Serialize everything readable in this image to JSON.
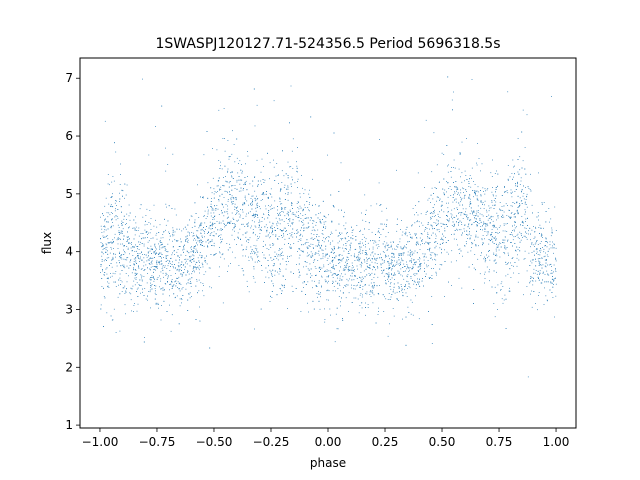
{
  "chart_data": {
    "type": "scatter",
    "title": "1SWASPJ120127.71-524356.5 Period 5696318.5s",
    "xlabel": "phase",
    "ylabel": "flux",
    "xlim": [
      -1.0875,
      1.0875
    ],
    "ylim": [
      0.95,
      7.35
    ],
    "x_ticks": [
      -1.0,
      -0.75,
      -0.5,
      -0.25,
      0.0,
      0.25,
      0.5,
      0.75,
      1.0
    ],
    "x_tick_labels": [
      "−1.00",
      "−0.75",
      "−0.50",
      "−0.25",
      "0.00",
      "0.25",
      "0.50",
      "0.75",
      "1.00"
    ],
    "y_ticks": [
      1,
      2,
      3,
      4,
      5,
      6,
      7
    ],
    "y_tick_labels": [
      "1",
      "2",
      "3",
      "4",
      "5",
      "6",
      "7"
    ],
    "grid": false,
    "legend": "none",
    "marker_color": "#1f77b4",
    "series": [
      {
        "phase_x": [
          -1.0,
          -0.95,
          -0.9,
          -0.85,
          -0.8,
          -0.75,
          -0.7,
          -0.65,
          -0.6,
          -0.55,
          -0.5,
          -0.45,
          -0.4,
          -0.35,
          -0.3,
          -0.25,
          -0.2,
          -0.15,
          -0.1,
          -0.05,
          0.0,
          0.05,
          0.1,
          0.15,
          0.2,
          0.25,
          0.3,
          0.35,
          0.4,
          0.45,
          0.5,
          0.55,
          0.6,
          0.65,
          0.7,
          0.75,
          0.8,
          0.85,
          0.9,
          0.95,
          1.0
        ],
        "typical_flux": [
          3.9,
          4.2,
          4.1,
          3.8,
          3.85,
          3.9,
          3.85,
          3.8,
          3.9,
          4.2,
          4.5,
          4.8,
          4.7,
          4.6,
          4.5,
          4.3,
          4.4,
          4.6,
          4.2,
          4.0,
          3.9,
          3.8,
          3.7,
          3.8,
          3.7,
          3.9,
          3.8,
          3.8,
          3.9,
          4.2,
          4.6,
          4.8,
          4.7,
          4.6,
          4.4,
          4.2,
          4.5,
          4.7,
          4.0,
          3.9,
          3.8
        ],
        "flux_spread": [
          0.45,
          0.6,
          0.5,
          0.4,
          0.4,
          0.4,
          0.4,
          0.4,
          0.4,
          0.45,
          0.5,
          0.5,
          0.5,
          0.5,
          0.5,
          0.55,
          0.55,
          0.55,
          0.5,
          0.45,
          0.45,
          0.45,
          0.4,
          0.4,
          0.4,
          0.4,
          0.4,
          0.4,
          0.4,
          0.45,
          0.5,
          0.5,
          0.5,
          0.5,
          0.5,
          0.55,
          0.55,
          0.55,
          0.5,
          0.45,
          0.45
        ]
      }
    ]
  }
}
